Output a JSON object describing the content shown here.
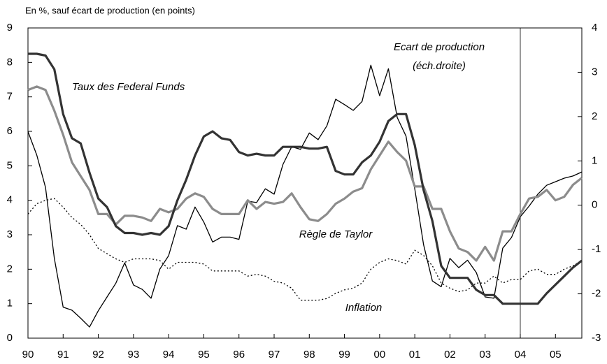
{
  "chart_data": {
    "type": "line",
    "axis_label": "En %, sauf écart de production (en points)",
    "x": [
      1990,
      1990.25,
      1990.5,
      1990.75,
      1991,
      1991.25,
      1991.5,
      1991.75,
      1992,
      1992.25,
      1992.5,
      1992.75,
      1993,
      1993.25,
      1993.5,
      1993.75,
      1994,
      1994.25,
      1994.5,
      1994.75,
      1995,
      1995.25,
      1995.5,
      1995.75,
      1996,
      1996.25,
      1996.5,
      1996.75,
      1997,
      1997.25,
      1997.5,
      1997.75,
      1998,
      1998.25,
      1998.5,
      1998.75,
      1999,
      1999.25,
      1999.5,
      1999.75,
      2000,
      2000.25,
      2000.5,
      2000.75,
      2001,
      2001.25,
      2001.5,
      2001.75,
      2002,
      2002.25,
      2002.5,
      2002.75,
      2003,
      2003.25,
      2003.5,
      2003.75,
      2004,
      2004.25,
      2004.5,
      2004.75,
      2005,
      2005.25,
      2005.5,
      2005.75
    ],
    "series": [
      {
        "name": "Taux des Federal Funds",
        "color": "#333333",
        "width": 3.2,
        "values": [
          8.25,
          8.25,
          8.2,
          7.8,
          6.5,
          5.8,
          5.65,
          4.8,
          4.05,
          3.8,
          3.25,
          3.05,
          3.05,
          3.0,
          3.05,
          3.0,
          3.25,
          4.0,
          4.6,
          5.3,
          5.85,
          6.0,
          5.8,
          5.75,
          5.4,
          5.3,
          5.35,
          5.3,
          5.3,
          5.55,
          5.55,
          5.55,
          5.5,
          5.5,
          5.55,
          4.85,
          4.75,
          4.75,
          5.1,
          5.3,
          5.7,
          6.3,
          6.5,
          6.5,
          5.6,
          4.3,
          3.4,
          2.1,
          1.75,
          1.75,
          1.75,
          1.4,
          1.25,
          1.25,
          1.0,
          1.0,
          1.0,
          1.0,
          1.0,
          1.3,
          1.55,
          1.8,
          2.05,
          2.25
        ]
      },
      {
        "name": "Règle de Taylor",
        "color": "#8c8c8c",
        "width": 3.2,
        "values": [
          7.2,
          7.3,
          7.2,
          6.6,
          5.9,
          5.1,
          4.7,
          4.3,
          3.6,
          3.6,
          3.3,
          3.55,
          3.55,
          3.5,
          3.4,
          3.75,
          3.65,
          3.75,
          4.05,
          4.2,
          4.1,
          3.75,
          3.6,
          3.6,
          3.6,
          4.0,
          3.75,
          3.95,
          3.9,
          3.95,
          4.2,
          3.8,
          3.45,
          3.4,
          3.6,
          3.9,
          4.05,
          4.25,
          4.35,
          4.9,
          5.3,
          5.7,
          5.4,
          5.15,
          4.4,
          4.4,
          3.75,
          3.75,
          3.1,
          2.6,
          2.5,
          2.25,
          2.65,
          2.25,
          3.1,
          3.1,
          3.6,
          4.05,
          4.1,
          4.3,
          4.0,
          4.1,
          4.45,
          4.65
        ]
      },
      {
        "name": "Ecart de production",
        "color": "#000000",
        "width": 1.3,
        "axis": "y2",
        "values": [
          1.66,
          1.13,
          0.4,
          -1.2,
          -2.3,
          -2.37,
          -2.55,
          -2.75,
          -2.38,
          -2.07,
          -1.76,
          -1.3,
          -1.8,
          -1.9,
          -2.1,
          -1.44,
          -1.14,
          -0.46,
          -0.54,
          -0.04,
          -0.38,
          -0.83,
          -0.72,
          -0.72,
          -0.77,
          0.09,
          0.06,
          0.37,
          0.25,
          0.92,
          1.32,
          1.26,
          1.63,
          1.48,
          1.79,
          2.39,
          2.27,
          2.14,
          2.34,
          3.16,
          2.47,
          3.08,
          1.98,
          1.56,
          0.37,
          -0.89,
          -1.71,
          -1.84,
          -1.2,
          -1.41,
          -1.24,
          -1.52,
          -2.07,
          -2.1,
          -0.97,
          -0.73,
          -0.26,
          -0.02,
          0.25,
          0.45,
          0.53,
          0.61,
          0.66,
          0.75
        ]
      },
      {
        "name": "Inflation",
        "color": "#000000",
        "width": 1.3,
        "dash": true,
        "values": [
          3.6,
          3.9,
          4.0,
          4.05,
          3.8,
          3.5,
          3.3,
          3.0,
          2.6,
          2.45,
          2.3,
          2.2,
          2.3,
          2.3,
          2.3,
          2.25,
          2.0,
          2.2,
          2.2,
          2.2,
          2.15,
          1.95,
          1.95,
          1.95,
          1.95,
          1.8,
          1.85,
          1.8,
          1.65,
          1.6,
          1.45,
          1.1,
          1.1,
          1.1,
          1.15,
          1.3,
          1.4,
          1.45,
          1.6,
          2.0,
          2.2,
          2.3,
          2.25,
          2.15,
          2.55,
          2.4,
          2.1,
          1.6,
          1.45,
          1.35,
          1.4,
          1.6,
          1.6,
          1.8,
          1.6,
          1.7,
          1.7,
          1.95,
          2.0,
          1.85,
          1.85,
          2.0,
          2.1,
          2.25
        ]
      }
    ],
    "gap_note": "(éch.droite)",
    "vline": 2004,
    "xlim": [
      1990,
      2005.75
    ],
    "xticks": [
      {
        "value": 1990,
        "label": "90"
      },
      {
        "value": 1991,
        "label": "91"
      },
      {
        "value": 1992,
        "label": "92"
      },
      {
        "value": 1993,
        "label": "93"
      },
      {
        "value": 1994,
        "label": "94"
      },
      {
        "value": 1995,
        "label": "95"
      },
      {
        "value": 1996,
        "label": "96"
      },
      {
        "value": 1997,
        "label": "97"
      },
      {
        "value": 1998,
        "label": "98"
      },
      {
        "value": 1999,
        "label": "99"
      },
      {
        "value": 2000,
        "label": "00"
      },
      {
        "value": 2001,
        "label": "01"
      },
      {
        "value": 2002,
        "label": "02"
      },
      {
        "value": 2003,
        "label": "03"
      },
      {
        "value": 2004,
        "label": "04"
      },
      {
        "value": 2005,
        "label": "05"
      }
    ],
    "ylim": [
      0,
      9
    ],
    "yticks": [
      0,
      1,
      2,
      3,
      4,
      5,
      6,
      7,
      8,
      9
    ],
    "y2lim": [
      -3,
      4
    ],
    "y2ticks": [
      -3,
      -2,
      -1,
      0,
      1,
      2,
      3,
      4
    ]
  }
}
